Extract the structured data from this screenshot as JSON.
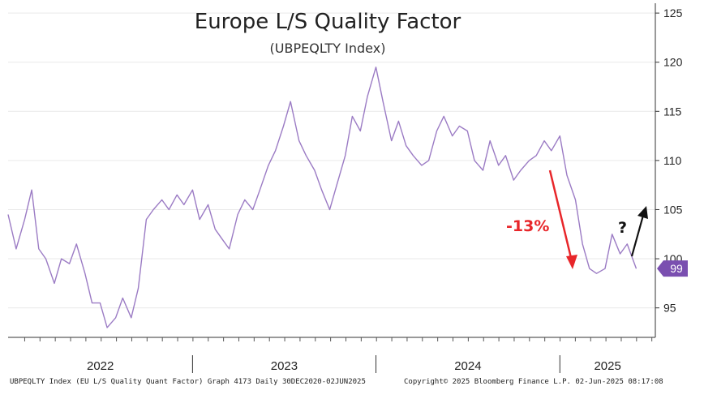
{
  "chart_data": {
    "type": "line",
    "title": "Europe L/S Quality Factor",
    "subtitle": "(UBPEQLTY Index)",
    "ylim": [
      92,
      126
    ],
    "y_ticks": [
      95,
      100,
      105,
      110,
      115,
      120,
      125
    ],
    "x_labels": [
      "2022",
      "2023",
      "2024",
      "2025"
    ],
    "last_value_label": "99",
    "last_value": 99,
    "series": [
      {
        "color": "#9b7bc4",
        "x": [
          "2021-12-30",
          "2022-01-15",
          "2022-02-01",
          "2022-02-15",
          "2022-03-01",
          "2022-03-15",
          "2022-04-01",
          "2022-04-15",
          "2022-05-01",
          "2022-05-15",
          "2022-06-01",
          "2022-06-15",
          "2022-07-01",
          "2022-07-15",
          "2022-08-01",
          "2022-08-15",
          "2022-09-01",
          "2022-09-15",
          "2022-10-01",
          "2022-10-15",
          "2022-11-01",
          "2022-11-15",
          "2022-12-01",
          "2022-12-15",
          "2023-01-01",
          "2023-01-15",
          "2023-02-01",
          "2023-02-15",
          "2023-03-01",
          "2023-03-15",
          "2023-04-01",
          "2023-04-15",
          "2023-05-01",
          "2023-05-15",
          "2023-06-01",
          "2023-06-15",
          "2023-07-01",
          "2023-07-15",
          "2023-08-01",
          "2023-08-15",
          "2023-09-01",
          "2023-09-15",
          "2023-10-01",
          "2023-10-15",
          "2023-11-01",
          "2023-11-15",
          "2023-12-01",
          "2023-12-15",
          "2024-01-01",
          "2024-01-15",
          "2024-02-01",
          "2024-02-15",
          "2024-03-01",
          "2024-03-15",
          "2024-04-01",
          "2024-04-15",
          "2024-05-01",
          "2024-05-15",
          "2024-06-01",
          "2024-06-15",
          "2024-07-01",
          "2024-07-15",
          "2024-08-01",
          "2024-08-15",
          "2024-09-01",
          "2024-09-15",
          "2024-10-01",
          "2024-10-15",
          "2024-11-01",
          "2024-11-15",
          "2024-12-01",
          "2024-12-15",
          "2025-01-01",
          "2025-01-15",
          "2025-02-01",
          "2025-02-15",
          "2025-03-01",
          "2025-03-15",
          "2025-04-01",
          "2025-04-15",
          "2025-05-01",
          "2025-05-15",
          "2025-06-02"
        ],
        "values": [
          104.5,
          101.0,
          104.0,
          107.0,
          101.0,
          100.0,
          97.5,
          100.0,
          99.5,
          101.5,
          98.5,
          95.5,
          95.5,
          93.0,
          94.0,
          96.0,
          94.0,
          97.0,
          104.0,
          105.0,
          106.0,
          105.0,
          106.5,
          105.5,
          107.0,
          104.0,
          105.5,
          103.0,
          102.0,
          101.0,
          104.5,
          106.0,
          105.0,
          107.0,
          109.5,
          111.0,
          113.5,
          116.0,
          112.0,
          110.5,
          109.0,
          107.0,
          105.0,
          107.5,
          110.5,
          114.5,
          113.0,
          116.5,
          119.5,
          116.0,
          112.0,
          114.0,
          111.5,
          110.5,
          109.5,
          110.0,
          113.0,
          114.5,
          112.5,
          113.5,
          113.0,
          110.0,
          109.0,
          112.0,
          109.5,
          110.5,
          108.0,
          109.0,
          110.0,
          110.5,
          112.0,
          111.0,
          112.5,
          108.5,
          106.0,
          101.5,
          99.0,
          98.5,
          99.0,
          102.5,
          100.5,
          101.5,
          99.0
        ]
      }
    ],
    "annotation_drop": "-13%",
    "annotation_question": "?"
  },
  "footer": {
    "left": "UBPEQLTY Index (EU L/S Quality Quant Factor) Graph 4173  Daily 30DEC2020-02JUN2025",
    "right": "Copyright© 2025 Bloomberg Finance L.P.   02-Jun-2025 08:17:08"
  }
}
